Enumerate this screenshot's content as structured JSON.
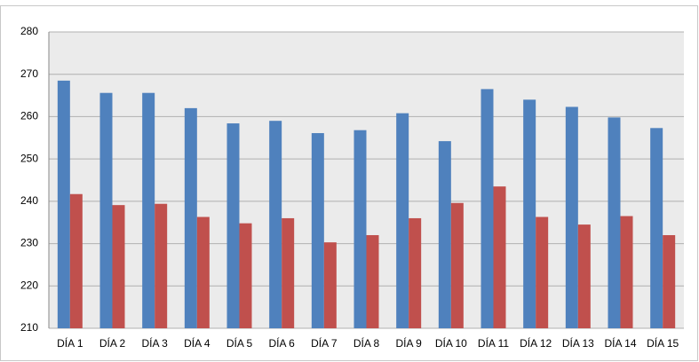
{
  "chart_data": {
    "type": "bar",
    "categories": [
      "DÍA 1",
      "DÍA 2",
      "DÍA 3",
      "DÍA 4",
      "DÍA 5",
      "DÍA 6",
      "DÍA 7",
      "DÍA 8",
      "DÍA 9",
      "DÍA 10",
      "DÍA 11",
      "DÍA 12",
      "DÍA 13",
      "DÍA 14",
      "DÍA 15"
    ],
    "series": [
      {
        "color": "#4f81bd",
        "values": [
          268.5,
          265.6,
          265.6,
          262,
          258.4,
          259,
          256.1,
          256.8,
          260.8,
          254.2,
          266.5,
          264,
          262.3,
          259.8,
          257.3
        ]
      },
      {
        "color": "#c0504d",
        "values": [
          241.7,
          239.1,
          239.4,
          236.3,
          234.8,
          236,
          230.3,
          232,
          236,
          239.6,
          243.5,
          236.3,
          234.5,
          236.5,
          232
        ]
      }
    ],
    "ylim": [
      210,
      280
    ],
    "yticks": [
      210,
      220,
      230,
      240,
      250,
      260,
      270,
      280
    ],
    "grid": true
  }
}
